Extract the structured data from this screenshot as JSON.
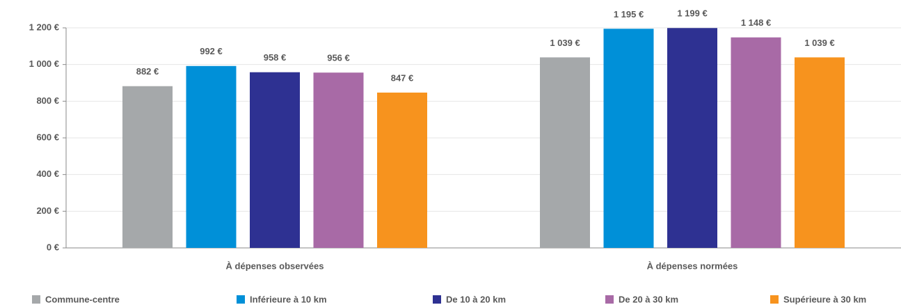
{
  "chart_data": {
    "type": "bar",
    "categories": [
      "À dépenses observées",
      "À dépenses normées"
    ],
    "series": [
      {
        "name": "Commune-centre",
        "color": "#a5a8aa",
        "values": [
          882,
          1039
        ],
        "value_labels": [
          "882 €",
          "1 039 €"
        ]
      },
      {
        "name": "Inférieure à 10 km",
        "color": "#0090d8",
        "values": [
          992,
          1195
        ],
        "value_labels": [
          "992 €",
          "1 195 €"
        ]
      },
      {
        "name": "De 10 à 20 km",
        "color": "#2e3192",
        "values": [
          958,
          1199
        ],
        "value_labels": [
          "958 €",
          "1 199 €"
        ]
      },
      {
        "name": "De 20 à 30 km",
        "color": "#a86aa6",
        "values": [
          956,
          1148
        ],
        "value_labels": [
          "956 €",
          "1 148 €"
        ]
      },
      {
        "name": "Supérieure à 30 km",
        "color": "#f7931e",
        "values": [
          847,
          1039
        ],
        "value_labels": [
          "847 €",
          "1 039 €"
        ]
      }
    ],
    "ylim": [
      0,
      1200
    ],
    "yticks": [
      {
        "value": 0,
        "label": "0 €"
      },
      {
        "value": 200,
        "label": "200 €"
      },
      {
        "value": 400,
        "label": "400 €"
      },
      {
        "value": 600,
        "label": "600 €"
      },
      {
        "value": 800,
        "label": "800 €"
      },
      {
        "value": 1000,
        "label": "1 000 €"
      },
      {
        "value": 1200,
        "label": "1 200 €"
      }
    ],
    "grid": true,
    "legend": "bottom"
  }
}
